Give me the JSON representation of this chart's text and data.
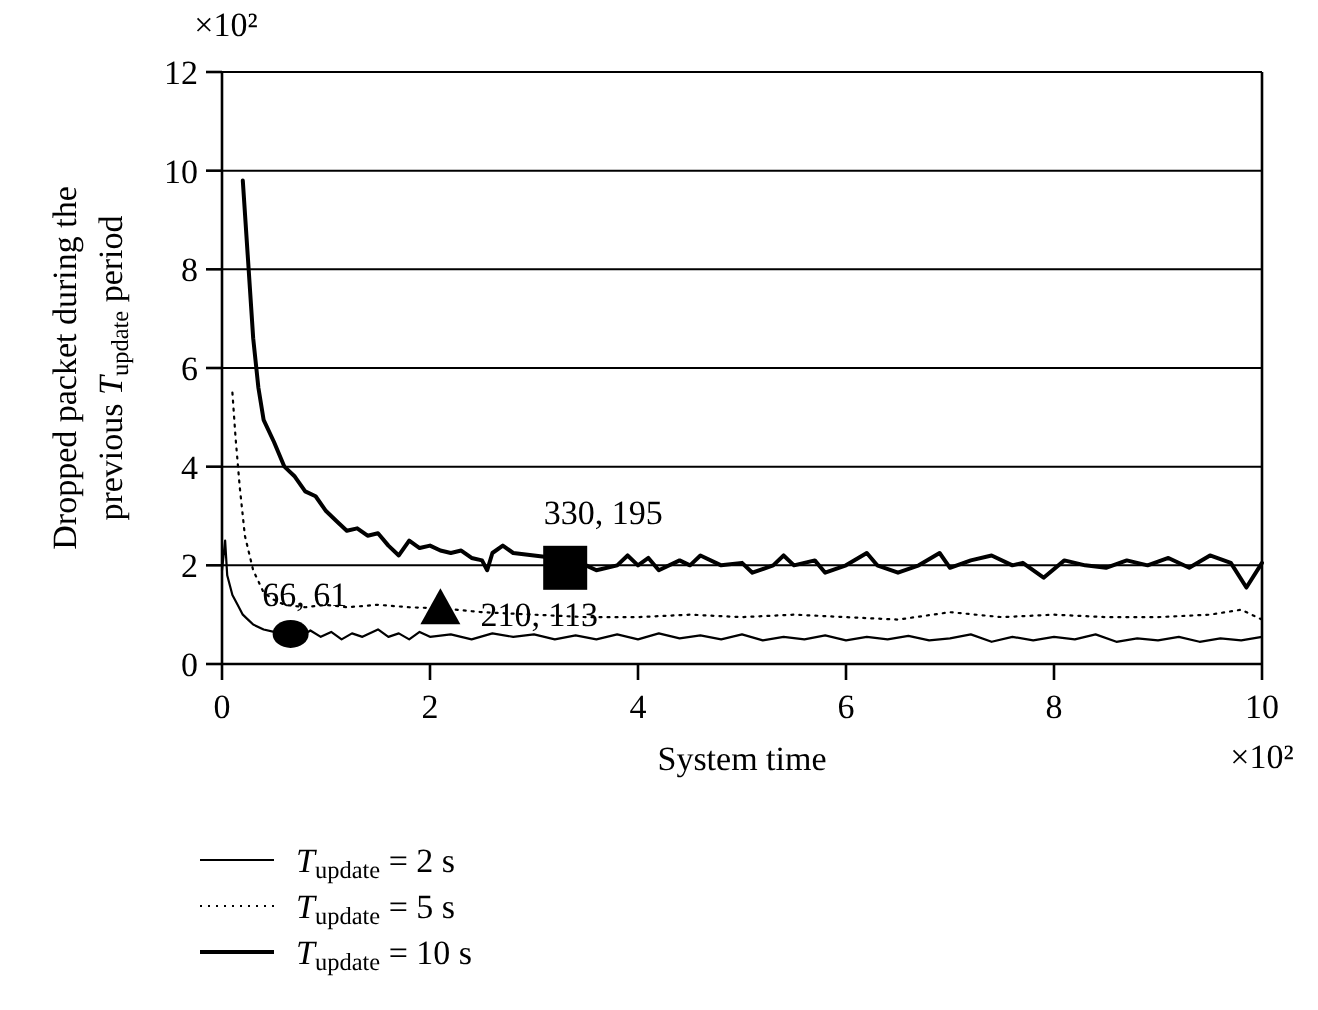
{
  "chart_data": {
    "type": "line",
    "xlabel": "System time",
    "ylabel": "Dropped packet during the previous T$_{update}$ period",
    "xlim": [
      0,
      10
    ],
    "xticks": [
      0,
      2,
      4,
      6,
      8,
      10
    ],
    "ylim": [
      0,
      12
    ],
    "yticks": [
      0,
      2,
      4,
      6,
      8,
      10,
      12
    ],
    "grid": "y",
    "legend": "bottom",
    "marker": "none",
    "annotations": [
      "×10²",
      "×10²",
      {
        "text": "66, 61",
        "x": 0.66,
        "y": 0.61
      },
      {
        "text": "210, 113",
        "x": 2.1,
        "y": 1.13
      },
      {
        "text": "330, 195",
        "x": 3.3,
        "y": 1.95
      }
    ],
    "series": [
      {
        "name": "T$_{update}$ = 2 s",
        "color": "#000000",
        "line_style": "solid",
        "x": [
          0,
          0.03,
          0.05,
          0.1,
          0.15,
          0.2,
          0.25,
          0.3,
          0.4,
          0.5,
          0.6,
          0.66,
          0.75,
          0.85,
          0.95,
          1.05,
          1.15,
          1.25,
          1.35,
          1.5,
          1.6,
          1.7,
          1.8,
          1.9,
          2.0,
          2.2,
          2.4,
          2.6,
          2.8,
          3.0,
          3.2,
          3.4,
          3.6,
          3.8,
          4.0,
          4.2,
          4.4,
          4.6,
          4.8,
          5.0,
          5.2,
          5.4,
          5.6,
          5.8,
          6.0,
          6.2,
          6.4,
          6.6,
          6.8,
          7.0,
          7.2,
          7.4,
          7.6,
          7.8,
          8.0,
          8.2,
          8.4,
          8.6,
          8.8,
          9.0,
          9.2,
          9.4,
          9.6,
          9.8,
          10
        ],
        "values": [
          1.9,
          2.5,
          1.8,
          1.4,
          1.2,
          1.0,
          0.9,
          0.8,
          0.7,
          0.65,
          0.6,
          0.61,
          0.55,
          0.68,
          0.55,
          0.65,
          0.5,
          0.62,
          0.55,
          0.7,
          0.55,
          0.62,
          0.5,
          0.65,
          0.55,
          0.6,
          0.5,
          0.62,
          0.55,
          0.6,
          0.5,
          0.58,
          0.5,
          0.6,
          0.5,
          0.62,
          0.52,
          0.58,
          0.5,
          0.6,
          0.48,
          0.55,
          0.5,
          0.58,
          0.48,
          0.55,
          0.5,
          0.57,
          0.48,
          0.52,
          0.6,
          0.45,
          0.55,
          0.48,
          0.55,
          0.5,
          0.6,
          0.45,
          0.52,
          0.48,
          0.55,
          0.45,
          0.52,
          0.48,
          0.55
        ]
      },
      {
        "name": "T$_{update}$ = 5 s",
        "color": "#000000",
        "line_style": "dotted",
        "x": [
          0.1,
          0.13,
          0.17,
          0.22,
          0.3,
          0.4,
          0.5,
          0.6,
          0.8,
          1.0,
          1.2,
          1.5,
          1.8,
          2.1,
          2.5,
          3.0,
          3.5,
          4.0,
          4.5,
          5.0,
          5.5,
          6.0,
          6.5,
          7.0,
          7.5,
          8.0,
          8.5,
          9.0,
          9.5,
          9.8,
          10
        ],
        "values": [
          5.5,
          4.6,
          3.6,
          2.6,
          1.9,
          1.45,
          1.3,
          1.2,
          1.15,
          1.2,
          1.15,
          1.2,
          1.15,
          1.13,
          1.05,
          1.0,
          0.95,
          0.95,
          1.0,
          0.95,
          1.0,
          0.95,
          0.9,
          1.05,
          0.95,
          1.0,
          0.95,
          0.95,
          1.0,
          1.1,
          0.9
        ]
      },
      {
        "name": "T$_{update}$ = 10 s",
        "color": "#000000",
        "line_style": "solid",
        "x": [
          0.2,
          0.25,
          0.3,
          0.35,
          0.4,
          0.5,
          0.6,
          0.7,
          0.8,
          0.9,
          1.0,
          1.1,
          1.2,
          1.3,
          1.4,
          1.5,
          1.6,
          1.7,
          1.8,
          1.9,
          2.0,
          2.1,
          2.2,
          2.3,
          2.4,
          2.5,
          2.55,
          2.6,
          2.7,
          2.8,
          3.0,
          3.2,
          3.3,
          3.5,
          3.6,
          3.8,
          3.9,
          4.0,
          4.1,
          4.2,
          4.4,
          4.5,
          4.6,
          4.8,
          5.0,
          5.1,
          5.3,
          5.4,
          5.5,
          5.7,
          5.8,
          6.0,
          6.2,
          6.3,
          6.5,
          6.7,
          6.9,
          7.0,
          7.2,
          7.4,
          7.6,
          7.7,
          7.9,
          8.1,
          8.3,
          8.5,
          8.7,
          8.9,
          9.1,
          9.3,
          9.5,
          9.7,
          9.85,
          10
        ],
        "values": [
          9.8,
          8.2,
          6.6,
          5.6,
          4.95,
          4.5,
          4.0,
          3.8,
          3.5,
          3.4,
          3.1,
          2.9,
          2.7,
          2.75,
          2.6,
          2.65,
          2.4,
          2.2,
          2.5,
          2.35,
          2.4,
          2.3,
          2.25,
          2.3,
          2.15,
          2.1,
          1.9,
          2.25,
          2.4,
          2.25,
          2.2,
          2.15,
          1.95,
          2.0,
          1.9,
          2.0,
          2.2,
          2.0,
          2.15,
          1.9,
          2.1,
          2.0,
          2.2,
          2.0,
          2.05,
          1.85,
          2.0,
          2.2,
          2.0,
          2.1,
          1.85,
          2.0,
          2.25,
          2.0,
          1.85,
          2.0,
          2.25,
          1.95,
          2.1,
          2.2,
          2.0,
          2.05,
          1.75,
          2.1,
          2.0,
          1.95,
          2.1,
          2.0,
          2.15,
          1.95,
          2.2,
          2.05,
          1.55,
          2.05
        ]
      },
      {
        "type": "scatter",
        "marker": "circle",
        "color": "#000000",
        "x": [
          0.66
        ],
        "values": [
          0.61
        ]
      },
      {
        "type": "scatter",
        "marker": "triangle",
        "color": "#000000",
        "x": [
          2.1
        ],
        "values": [
          1.13
        ]
      },
      {
        "type": "scatter",
        "marker": "square",
        "color": "#000000",
        "x": [
          3.3
        ],
        "values": [
          1.95
        ]
      }
    ]
  }
}
